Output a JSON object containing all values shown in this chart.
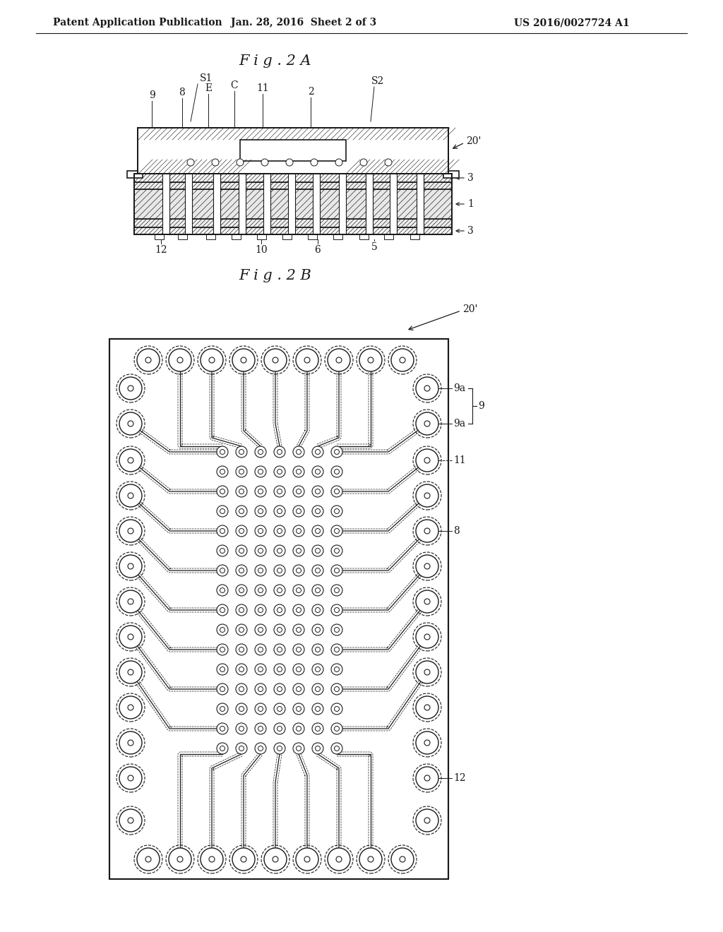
{
  "bg_color": "#ffffff",
  "line_color": "#1a1a1a",
  "header_left": "Patent Application Publication",
  "header_center": "Jan. 28, 2016  Sheet 2 of 3",
  "header_right": "US 2016/0027724 A1",
  "fig2a_title": "F i g . 2 A",
  "fig2b_title": "F i g . 2 B"
}
